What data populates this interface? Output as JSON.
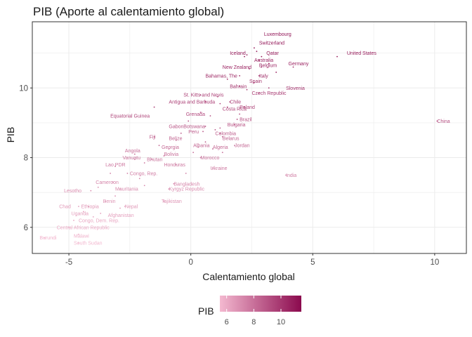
{
  "chart_data": {
    "type": "scatter",
    "title": "PIB (Aporte al calentamiento global)",
    "xlabel": "Calentamiento global",
    "ylabel": "PIB",
    "xlim": [
      -6.5,
      11.3
    ],
    "ylim": [
      5.25,
      11.9
    ],
    "x_ticks": [
      -5,
      0,
      5,
      10
    ],
    "y_ticks": [
      6,
      8,
      10
    ],
    "grid": true,
    "legend": {
      "title": "PIB",
      "position": "bottom",
      "ticks": [
        6,
        8,
        10
      ],
      "range": [
        5.5,
        11.5
      ],
      "color_low": "#f4b9d0",
      "color_high": "#8b0a4e"
    },
    "points": [
      {
        "label": "Luxembourg",
        "x": 2.6,
        "y": 11.15,
        "lx": 3.0,
        "ly": 11.55
      },
      {
        "label": "Switzerland",
        "x": 2.7,
        "y": 11.05,
        "lx": 2.8,
        "ly": 11.3
      },
      {
        "label": "Iceland",
        "x": 2.3,
        "y": 10.95,
        "lx": 1.6,
        "ly": 11.0
      },
      {
        "label": "Qatar",
        "x": 2.9,
        "y": 10.9,
        "lx": 3.1,
        "ly": 11.0
      },
      {
        "label": "United States",
        "x": 6.0,
        "y": 10.9,
        "lx": 6.4,
        "ly": 11.0
      },
      {
        "label": "Australia",
        "x": 2.8,
        "y": 10.8,
        "lx": 2.6,
        "ly": 10.8
      },
      {
        "label": "Belgium",
        "x": 2.9,
        "y": 10.6,
        "lx": 2.8,
        "ly": 10.65
      },
      {
        "label": "New Zealand",
        "x": 2.4,
        "y": 10.55,
        "lx": 1.3,
        "ly": 10.6
      },
      {
        "label": "Germany",
        "x": 4.2,
        "y": 10.6,
        "lx": 4.0,
        "ly": 10.7
      },
      {
        "label": "Italy",
        "x": 2.8,
        "y": 10.35,
        "lx": 2.8,
        "ly": 10.35
      },
      {
        "label": "Bahamas, The",
        "x": 2.0,
        "y": 10.35,
        "lx": 0.6,
        "ly": 10.35
      },
      {
        "label": "Spain",
        "x": 2.6,
        "y": 10.15,
        "lx": 2.4,
        "ly": 10.2
      },
      {
        "label": "Bahrain",
        "x": 2.0,
        "y": 10.05,
        "lx": 1.6,
        "ly": 10.05
      },
      {
        "label": "Slovenia",
        "x": 3.2,
        "y": 10.0,
        "lx": 3.9,
        "ly": 10.0
      },
      {
        "label": "St. Kitts and Nevis",
        "x": 1.1,
        "y": 9.75,
        "lx": -0.3,
        "ly": 9.8
      },
      {
        "label": "Czech Republic",
        "x": 2.8,
        "y": 9.85,
        "lx": 2.5,
        "ly": 9.85
      },
      {
        "label": "Antigua and Barbuda",
        "x": 0.6,
        "y": 9.6,
        "lx": -0.9,
        "ly": 9.6
      },
      {
        "label": "Chile",
        "x": 1.6,
        "y": 9.6,
        "lx": 1.6,
        "ly": 9.6
      },
      {
        "label": "Costa Rica",
        "x": 1.5,
        "y": 9.45,
        "lx": 1.3,
        "ly": 9.4
      },
      {
        "label": "Poland",
        "x": 2.2,
        "y": 9.45,
        "lx": 2.0,
        "ly": 9.45
      },
      {
        "label": "Grenada",
        "x": 0.4,
        "y": 9.3,
        "lx": -0.2,
        "ly": 9.25
      },
      {
        "label": "Equatorial Guinea",
        "x": -1.5,
        "y": 9.45,
        "lx": -3.3,
        "ly": 9.2
      },
      {
        "label": "Brazil",
        "x": 1.9,
        "y": 9.1,
        "lx": 2.0,
        "ly": 9.1
      },
      {
        "label": "China",
        "x": 10.1,
        "y": 9.05,
        "lx": 10.1,
        "ly": 9.05
      },
      {
        "label": "Bulgaria",
        "x": 1.8,
        "y": 8.95,
        "lx": 1.5,
        "ly": 8.95
      },
      {
        "label": "Gabon",
        "x": 0.6,
        "y": 8.9,
        "lx": -0.9,
        "ly": 8.9
      },
      {
        "label": "Botswana",
        "x": 1.2,
        "y": 8.85,
        "lx": -0.3,
        "ly": 8.9
      },
      {
        "label": "Peru",
        "x": 0.5,
        "y": 8.75,
        "lx": -0.1,
        "ly": 8.75
      },
      {
        "label": "Colombia",
        "x": 1.2,
        "y": 8.7,
        "lx": 1.0,
        "ly": 8.7
      },
      {
        "label": "Belarus",
        "x": 1.3,
        "y": 8.6,
        "lx": 1.3,
        "ly": 8.55
      },
      {
        "label": "Fiji",
        "x": -1.5,
        "y": 8.6,
        "lx": -1.7,
        "ly": 8.6
      },
      {
        "label": "Belize",
        "x": -0.6,
        "y": 8.5,
        "lx": -0.9,
        "ly": 8.55
      },
      {
        "label": "Jordan",
        "x": 1.8,
        "y": 8.35,
        "lx": 1.8,
        "ly": 8.35
      },
      {
        "label": "Albania",
        "x": 0.3,
        "y": 8.3,
        "lx": 0.1,
        "ly": 8.35
      },
      {
        "label": "Georgia",
        "x": -0.9,
        "y": 8.25,
        "lx": -1.2,
        "ly": 8.3
      },
      {
        "label": "Algeria",
        "x": 0.9,
        "y": 8.25,
        "lx": 0.9,
        "ly": 8.3
      },
      {
        "label": "Angola",
        "x": -2.3,
        "y": 8.1,
        "lx": -2.7,
        "ly": 8.2
      },
      {
        "label": "Bolivia",
        "x": -1.1,
        "y": 8.05,
        "lx": -1.1,
        "ly": 8.1
      },
      {
        "label": "Morocco",
        "x": 0.4,
        "y": 8.0,
        "lx": 0.4,
        "ly": 8.0
      },
      {
        "label": "Vanuatu",
        "x": -2.3,
        "y": 7.95,
        "lx": -2.8,
        "ly": 8.0
      },
      {
        "label": "Bhutan",
        "x": -1.6,
        "y": 7.95,
        "lx": -1.8,
        "ly": 7.95
      },
      {
        "label": "Honduras",
        "x": -0.6,
        "y": 7.8,
        "lx": -1.1,
        "ly": 7.8
      },
      {
        "label": "Ukraine",
        "x": 0.9,
        "y": 7.7,
        "lx": 0.8,
        "ly": 7.7
      },
      {
        "label": "Lao PDR",
        "x": -3.1,
        "y": 7.75,
        "lx": -3.5,
        "ly": 7.8
      },
      {
        "label": "Congo, Rep.",
        "x": -2.6,
        "y": 7.55,
        "lx": -2.5,
        "ly": 7.55
      },
      {
        "label": "India",
        "x": 3.9,
        "y": 7.5,
        "lx": 3.9,
        "ly": 7.5
      },
      {
        "label": "Cameroon",
        "x": -3.2,
        "y": 7.3,
        "lx": -3.9,
        "ly": 7.3
      },
      {
        "label": "Bangladesh",
        "x": -0.7,
        "y": 7.25,
        "lx": -0.7,
        "ly": 7.25
      },
      {
        "label": "Lesotho",
        "x": -4.1,
        "y": 7.05,
        "lx": -5.2,
        "ly": 7.05
      },
      {
        "label": "Mauritania",
        "x": -2.9,
        "y": 7.1,
        "lx": -3.1,
        "ly": 7.1
      },
      {
        "label": "Kyrgyz Republic",
        "x": -0.9,
        "y": 7.1,
        "lx": -0.9,
        "ly": 7.1
      },
      {
        "label": "Benin",
        "x": -3.5,
        "y": 6.75,
        "lx": -3.6,
        "ly": 6.75
      },
      {
        "label": "Tajikistan",
        "x": -1.1,
        "y": 6.75,
        "lx": -1.2,
        "ly": 6.75
      },
      {
        "label": "Chad",
        "x": -4.6,
        "y": 6.6,
        "lx": -5.4,
        "ly": 6.6
      },
      {
        "label": "Ethiopia",
        "x": -4.2,
        "y": 6.6,
        "lx": -4.5,
        "ly": 6.6
      },
      {
        "label": "Nepal",
        "x": -2.7,
        "y": 6.6,
        "lx": -2.7,
        "ly": 6.6
      },
      {
        "label": "Uganda",
        "x": -4.4,
        "y": 6.45,
        "lx": -4.9,
        "ly": 6.4
      },
      {
        "label": "Afghanistan",
        "x": -3.7,
        "y": 6.4,
        "lx": -3.4,
        "ly": 6.35
      },
      {
        "label": "Congo, Dem. Rep.",
        "x": -4.8,
        "y": 6.2,
        "lx": -4.6,
        "ly": 6.2
      },
      {
        "label": "Central African Republic",
        "x": -5.0,
        "y": 6.0,
        "lx": -5.5,
        "ly": 6.0
      },
      {
        "label": "Malawi",
        "x": -4.6,
        "y": 5.8,
        "lx": -4.8,
        "ly": 5.75
      },
      {
        "label": "Burundi",
        "x": -6.0,
        "y": 5.7,
        "lx": -6.2,
        "ly": 5.7
      },
      {
        "label": "South Sudan",
        "x": -4.6,
        "y": 5.55,
        "lx": -4.8,
        "ly": 5.55
      }
    ],
    "extra_points": [
      {
        "x": 2.2,
        "y": 10.9
      },
      {
        "x": 3.2,
        "y": 10.7
      },
      {
        "x": 3.5,
        "y": 10.45
      },
      {
        "x": 1.5,
        "y": 10.25
      },
      {
        "x": 2.3,
        "y": 9.95
      },
      {
        "x": 0.4,
        "y": 9.8
      },
      {
        "x": 1.2,
        "y": 9.55
      },
      {
        "x": 2.0,
        "y": 9.25
      },
      {
        "x": -0.1,
        "y": 9.05
      },
      {
        "x": 0.8,
        "y": 9.2
      },
      {
        "x": 1.0,
        "y": 8.8
      },
      {
        "x": -0.4,
        "y": 8.7
      },
      {
        "x": 0.6,
        "y": 8.45
      },
      {
        "x": -1.3,
        "y": 8.35
      },
      {
        "x": 0.1,
        "y": 8.15
      },
      {
        "x": 1.3,
        "y": 8.15
      },
      {
        "x": -1.9,
        "y": 7.85
      },
      {
        "x": -3.3,
        "y": 7.55
      },
      {
        "x": -2.1,
        "y": 7.4
      },
      {
        "x": -0.2,
        "y": 7.55
      },
      {
        "x": -3.8,
        "y": 7.15
      },
      {
        "x": -1.9,
        "y": 7.2
      },
      {
        "x": -3.1,
        "y": 6.9
      },
      {
        "x": -2.9,
        "y": 6.55
      },
      {
        "x": -4.0,
        "y": 6.3
      }
    ]
  }
}
